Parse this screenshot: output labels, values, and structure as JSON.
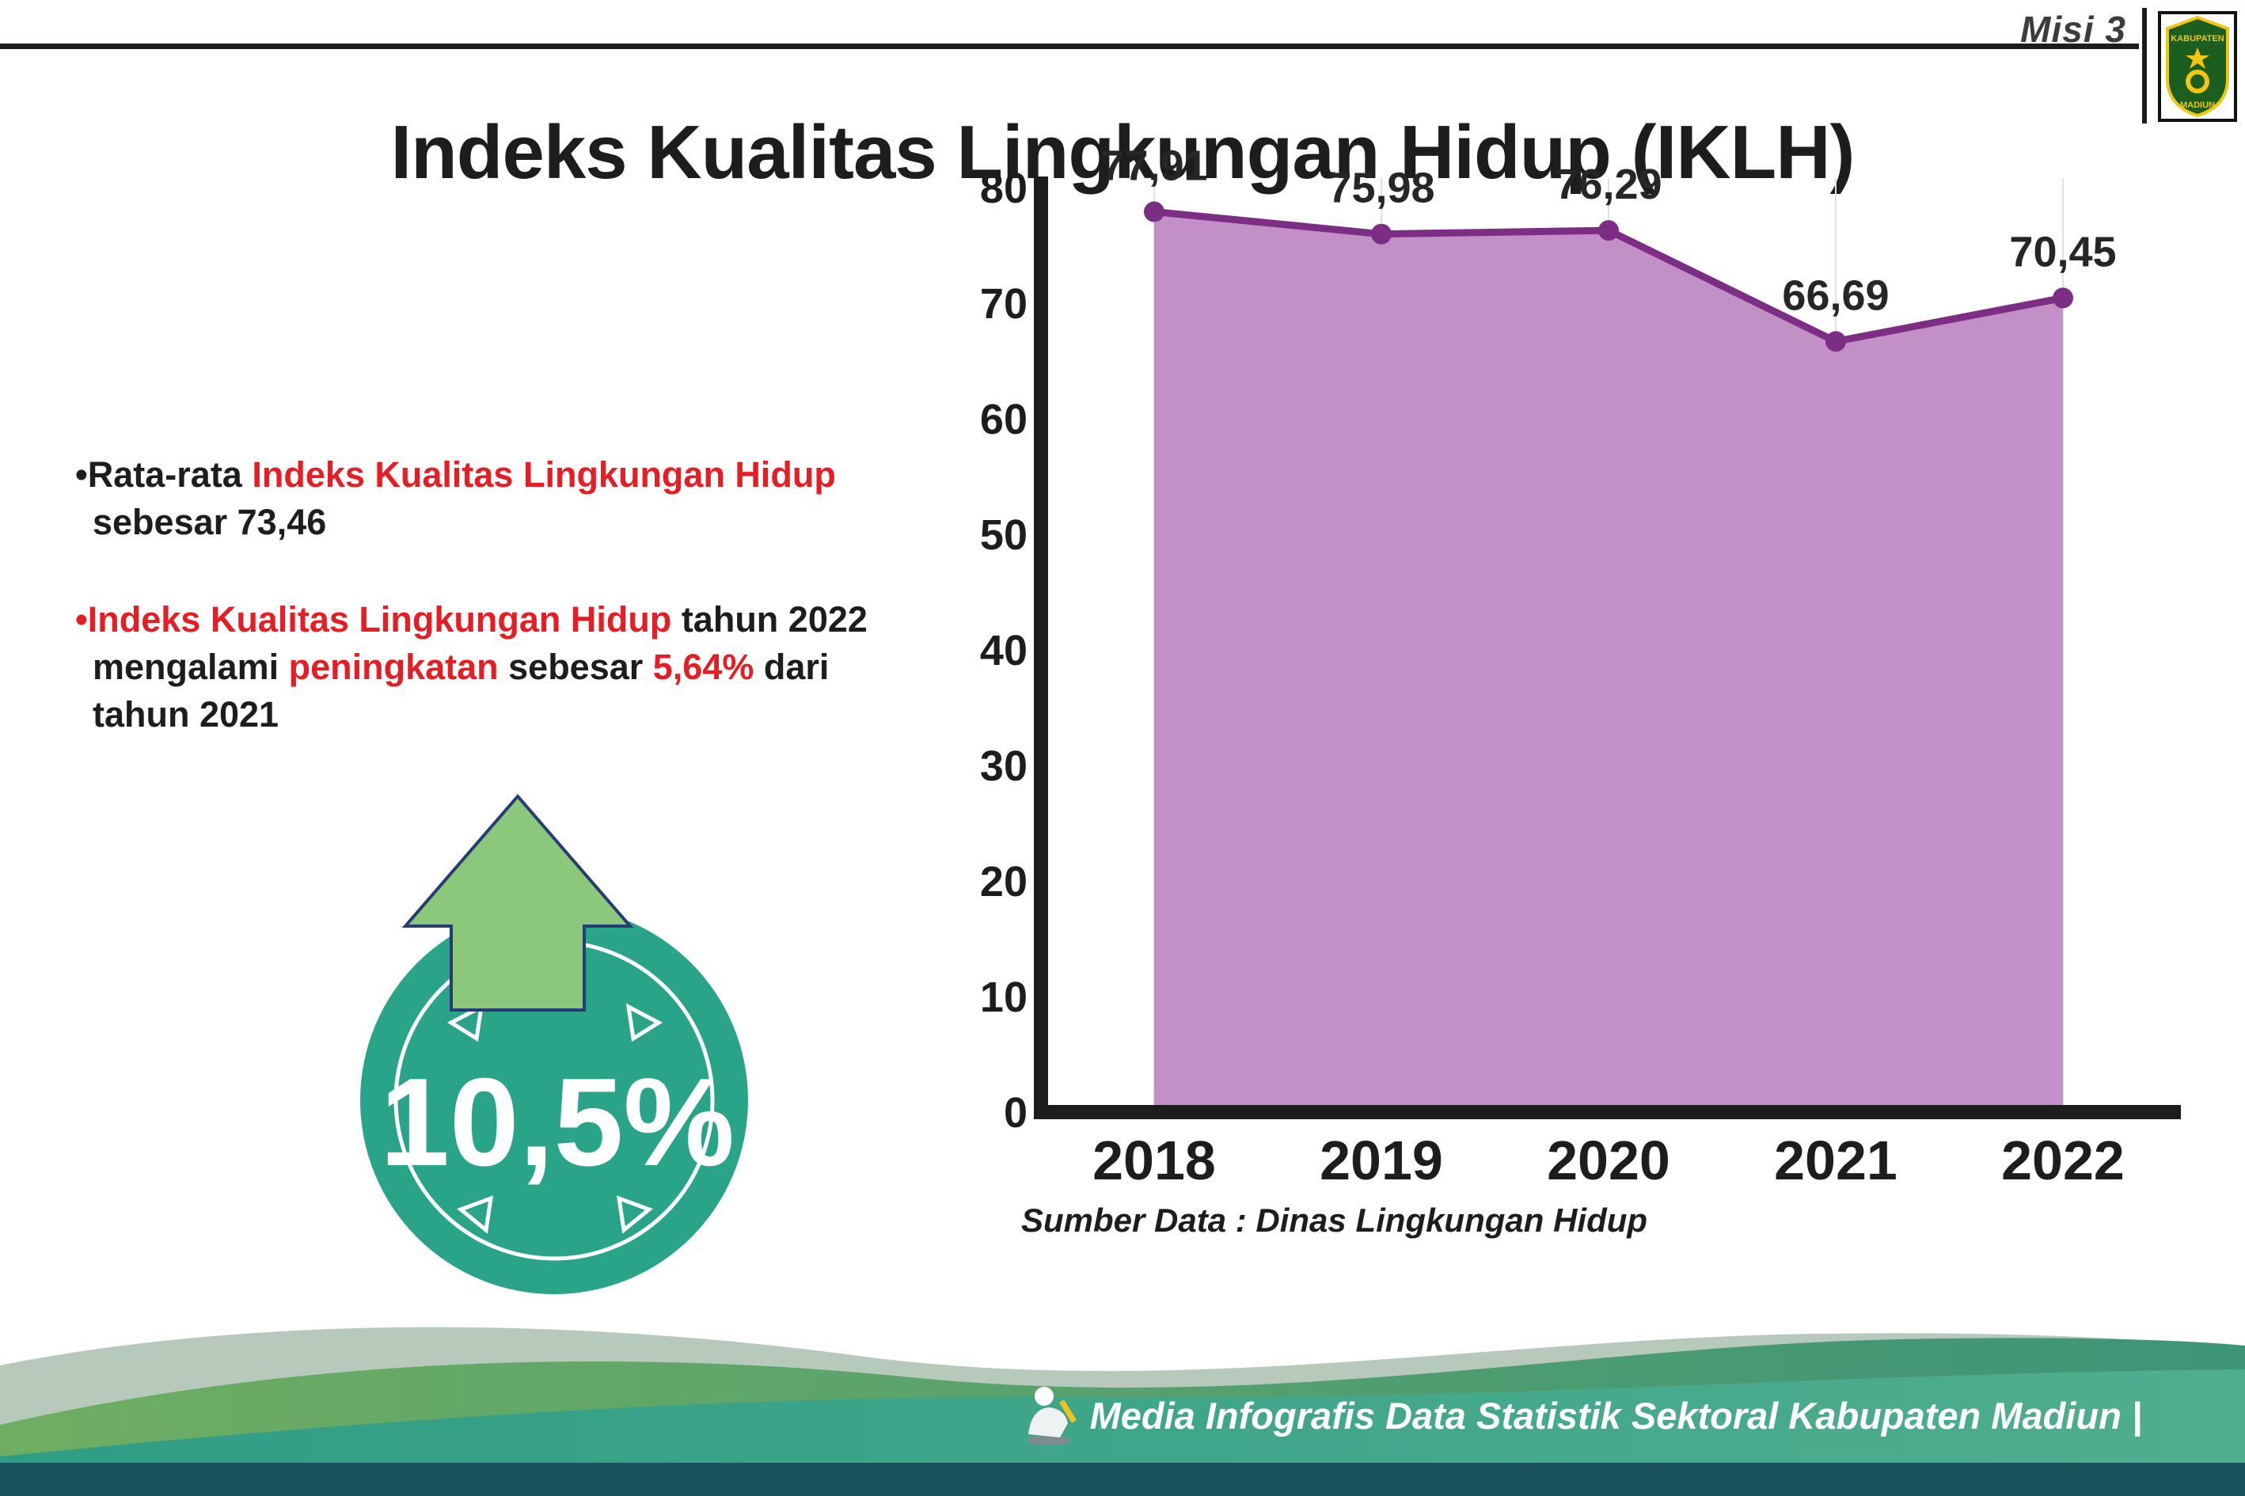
{
  "header": {
    "misi_label": "Misi 3",
    "logo": {
      "top_text": "KABUPATEN",
      "bottom_text": "MADIUN"
    }
  },
  "title": "Indeks Kualitas Lingkungan Hidup (IKLH)",
  "bullets": {
    "b1": {
      "line1_black": "•Rata-rata ",
      "line1_red": "Indeks Kualitas Lingkungan Hidup",
      "line2": "sebesar 73,46"
    },
    "b2": {
      "line1_red": "•Indeks Kualitas Lingkungan Hidup",
      "line1_black": " tahun 2022",
      "line2_black1": "mengalami ",
      "line2_red1": "peningkatan",
      "line2_black2": " sebesar ",
      "line2_red2": "5,64%",
      "line2_black3": " dari",
      "line3": "tahun 2021"
    }
  },
  "badge": {
    "value": "10,5%"
  },
  "chart_data": {
    "type": "area",
    "categories": [
      "2018",
      "2019",
      "2020",
      "2021",
      "2022"
    ],
    "values": [
      77.91,
      75.98,
      76.29,
      66.69,
      70.45
    ],
    "labels": [
      "77,91",
      "75,98",
      "76,29",
      "66,69",
      "70,45"
    ],
    "title": "",
    "xlabel": "",
    "ylabel": "",
    "ylim": [
      0,
      80
    ],
    "yticks": [
      0,
      10,
      20,
      30,
      40,
      50,
      60,
      70,
      80
    ],
    "grid": "vertical-light",
    "legend": "none",
    "area_color": "#c28fc7",
    "line_color": "#7c2d84",
    "source": "Sumber Data : Dinas Lingkungan Hidup"
  },
  "footer": {
    "credit": "Media Infografis Data Statistik Sektoral Kabupaten Madiun |"
  },
  "colors": {
    "accent_red": "#e51e25",
    "line_purple": "#7c2d84",
    "area_purple": "#c28fc7",
    "badge_teal": "#2aa489",
    "arrow_green": "#8cc87c",
    "footer_dark_teal": "#1a525c",
    "ink": "#1d1d1b"
  }
}
